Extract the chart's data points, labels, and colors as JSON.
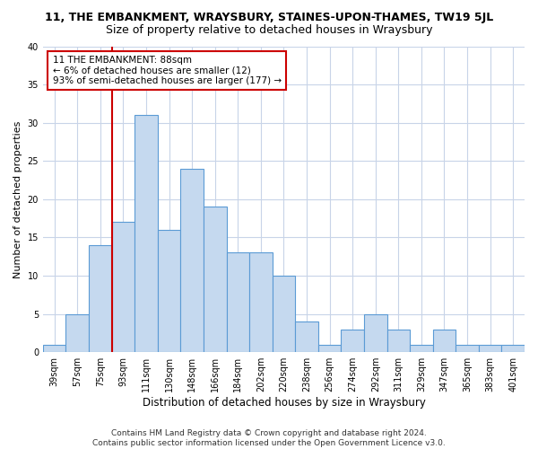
{
  "title": "11, THE EMBANKMENT, WRAYSBURY, STAINES-UPON-THAMES, TW19 5JL",
  "subtitle": "Size of property relative to detached houses in Wraysbury",
  "xlabel": "Distribution of detached houses by size in Wraysbury",
  "ylabel": "Number of detached properties",
  "categories": [
    "39sqm",
    "57sqm",
    "75sqm",
    "93sqm",
    "111sqm",
    "130sqm",
    "148sqm",
    "166sqm",
    "184sqm",
    "202sqm",
    "220sqm",
    "238sqm",
    "256sqm",
    "274sqm",
    "292sqm",
    "311sqm",
    "329sqm",
    "347sqm",
    "365sqm",
    "383sqm",
    "401sqm"
  ],
  "values": [
    1,
    5,
    14,
    17,
    31,
    16,
    24,
    19,
    13,
    13,
    10,
    4,
    1,
    3,
    5,
    3,
    1,
    3,
    1,
    1,
    1
  ],
  "bar_color": "#c5d9ef",
  "bar_edge_color": "#5b9bd5",
  "highlight_line_color": "#cc0000",
  "annotation_line1": "11 THE EMBANKMENT: 88sqm",
  "annotation_line2": "← 6% of detached houses are smaller (12)",
  "annotation_line3": "93% of semi-detached houses are larger (177) →",
  "annotation_box_color": "#ffffff",
  "annotation_box_edge": "#cc0000",
  "ylim": [
    0,
    40
  ],
  "yticks": [
    0,
    5,
    10,
    15,
    20,
    25,
    30,
    35,
    40
  ],
  "footnote": "Contains HM Land Registry data © Crown copyright and database right 2024.\nContains public sector information licensed under the Open Government Licence v3.0.",
  "bg_color": "#ffffff",
  "grid_color": "#c8d4e8",
  "title_fontsize": 9,
  "subtitle_fontsize": 9,
  "xlabel_fontsize": 8.5,
  "ylabel_fontsize": 8,
  "tick_fontsize": 7,
  "annotation_fontsize": 7.5,
  "footnote_fontsize": 6.5
}
